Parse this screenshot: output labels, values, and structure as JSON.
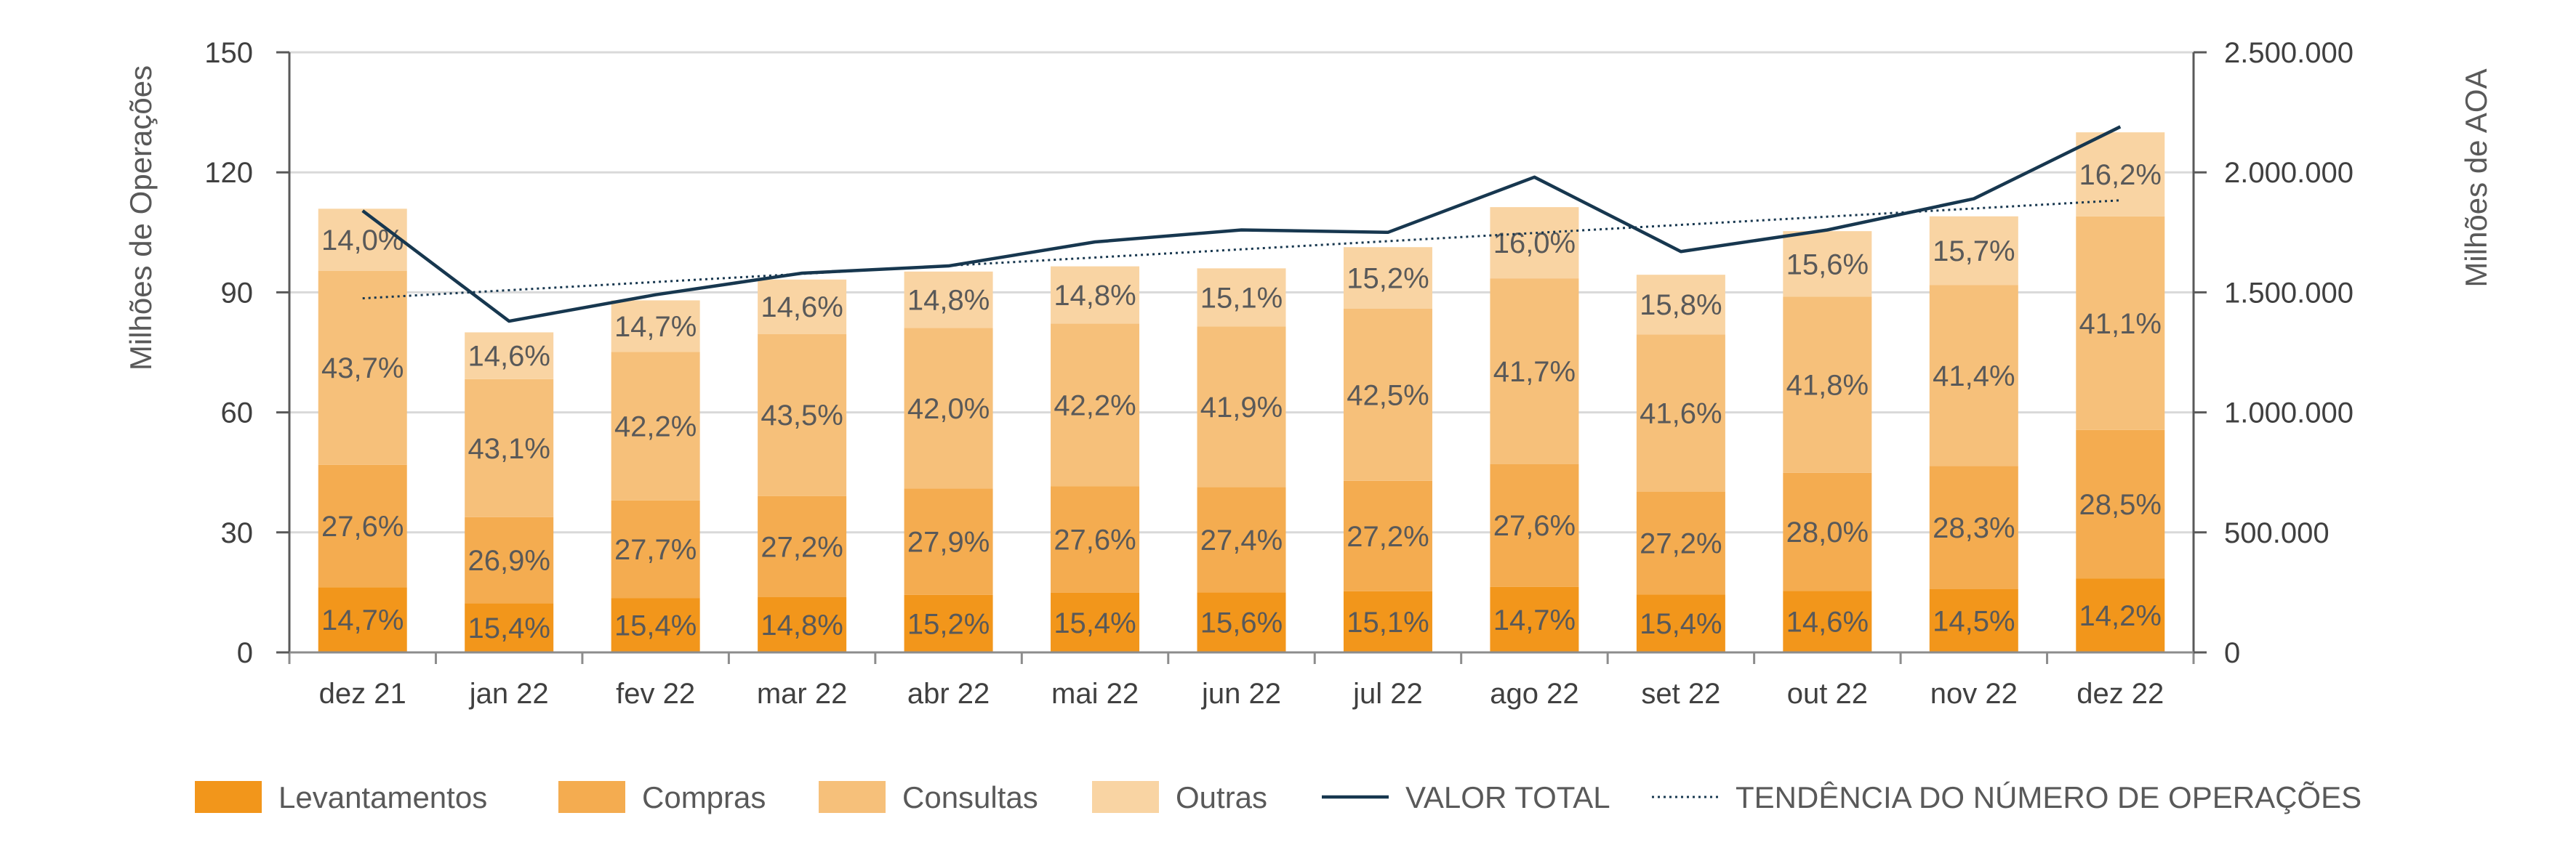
{
  "chart_data": {
    "type": "bar",
    "stacked": true,
    "categories": [
      "dez 21",
      "jan 22",
      "fev 22",
      "mar 22",
      "abr 22",
      "mai 22",
      "jun 22",
      "jul 22",
      "ago 22",
      "set 22",
      "out 22",
      "nov 22",
      "dez 22"
    ],
    "y_left": {
      "label": "Milhões de Operações",
      "ylim": [
        0,
        150
      ],
      "ticks": [
        0,
        30,
        60,
        90,
        120,
        150
      ],
      "tick_labels": [
        "0",
        "30",
        "60",
        "90",
        "120",
        "150"
      ]
    },
    "y_right": {
      "label": "Milhões de AOA",
      "ylim": [
        0,
        2500000
      ],
      "ticks": [
        0,
        500000,
        1000000,
        1500000,
        2000000,
        2500000
      ],
      "tick_labels": [
        "0",
        "500.000",
        "1.000.000",
        "1.500.000",
        "2.000.000",
        "2.500.000"
      ]
    },
    "grid": true,
    "legend_position": "bottom",
    "series": [
      {
        "name": "Levantamentos",
        "color": "#f2961b",
        "values": [
          16.3,
          12.3,
          13.6,
          13.8,
          14.4,
          14.9,
          15.0,
          15.3,
          16.4,
          14.5,
          15.4,
          15.8,
          18.5
        ],
        "labels": [
          "14,7%",
          "15,4%",
          "15,4%",
          "14,8%",
          "15,2%",
          "15,4%",
          "15,6%",
          "15,1%",
          "14,7%",
          "15,4%",
          "14,6%",
          "14,5%",
          "14,2%"
        ]
      },
      {
        "name": "Compras",
        "color": "#f4ac50",
        "values": [
          30.6,
          21.5,
          24.4,
          25.3,
          26.6,
          26.6,
          26.3,
          27.6,
          30.7,
          25.7,
          29.5,
          30.8,
          37.1
        ],
        "labels": [
          "27,6%",
          "26,9%",
          "27,7%",
          "27,2%",
          "27,9%",
          "27,6%",
          "27,4%",
          "27,2%",
          "27,6%",
          "27,2%",
          "28,0%",
          "28,3%",
          "28,5%"
        ]
      },
      {
        "name": "Consultas",
        "color": "#f6c07a",
        "values": [
          48.5,
          34.5,
          37.1,
          40.5,
          40.1,
          40.7,
          40.2,
          43.0,
          46.4,
          39.3,
          44.0,
          45.2,
          53.4
        ],
        "labels": [
          "43,7%",
          "43,1%",
          "42,2%",
          "43,5%",
          "42,0%",
          "42,2%",
          "41,9%",
          "42,5%",
          "41,7%",
          "41,6%",
          "41,8%",
          "41,4%",
          "41,1%"
        ]
      },
      {
        "name": "Outras",
        "color": "#f9d4a3",
        "values": [
          15.5,
          11.7,
          12.9,
          13.6,
          14.1,
          14.3,
          14.5,
          15.4,
          17.8,
          14.9,
          16.4,
          17.2,
          21.0
        ],
        "labels": [
          "14,0%",
          "14,6%",
          "14,7%",
          "14,6%",
          "14,8%",
          "14,8%",
          "15,1%",
          "15,2%",
          "16,0%",
          "15,8%",
          "15,6%",
          "15,7%",
          "16,2%"
        ]
      }
    ],
    "line_series": [
      {
        "name": "VALOR TOTAL",
        "axis": "right",
        "color": "#17374f",
        "style": "solid",
        "values": [
          1840000,
          1380000,
          1490000,
          1580000,
          1610000,
          1710000,
          1760000,
          1750000,
          1980000,
          1670000,
          1760000,
          1890000,
          2190000
        ]
      },
      {
        "name": "TENDÊNCIA DO NÚMERO DE OPERAÇÕES",
        "axis": "left",
        "color": "#17374f",
        "style": "dotted",
        "values": [
          88.5,
          113.0
        ]
      }
    ]
  }
}
